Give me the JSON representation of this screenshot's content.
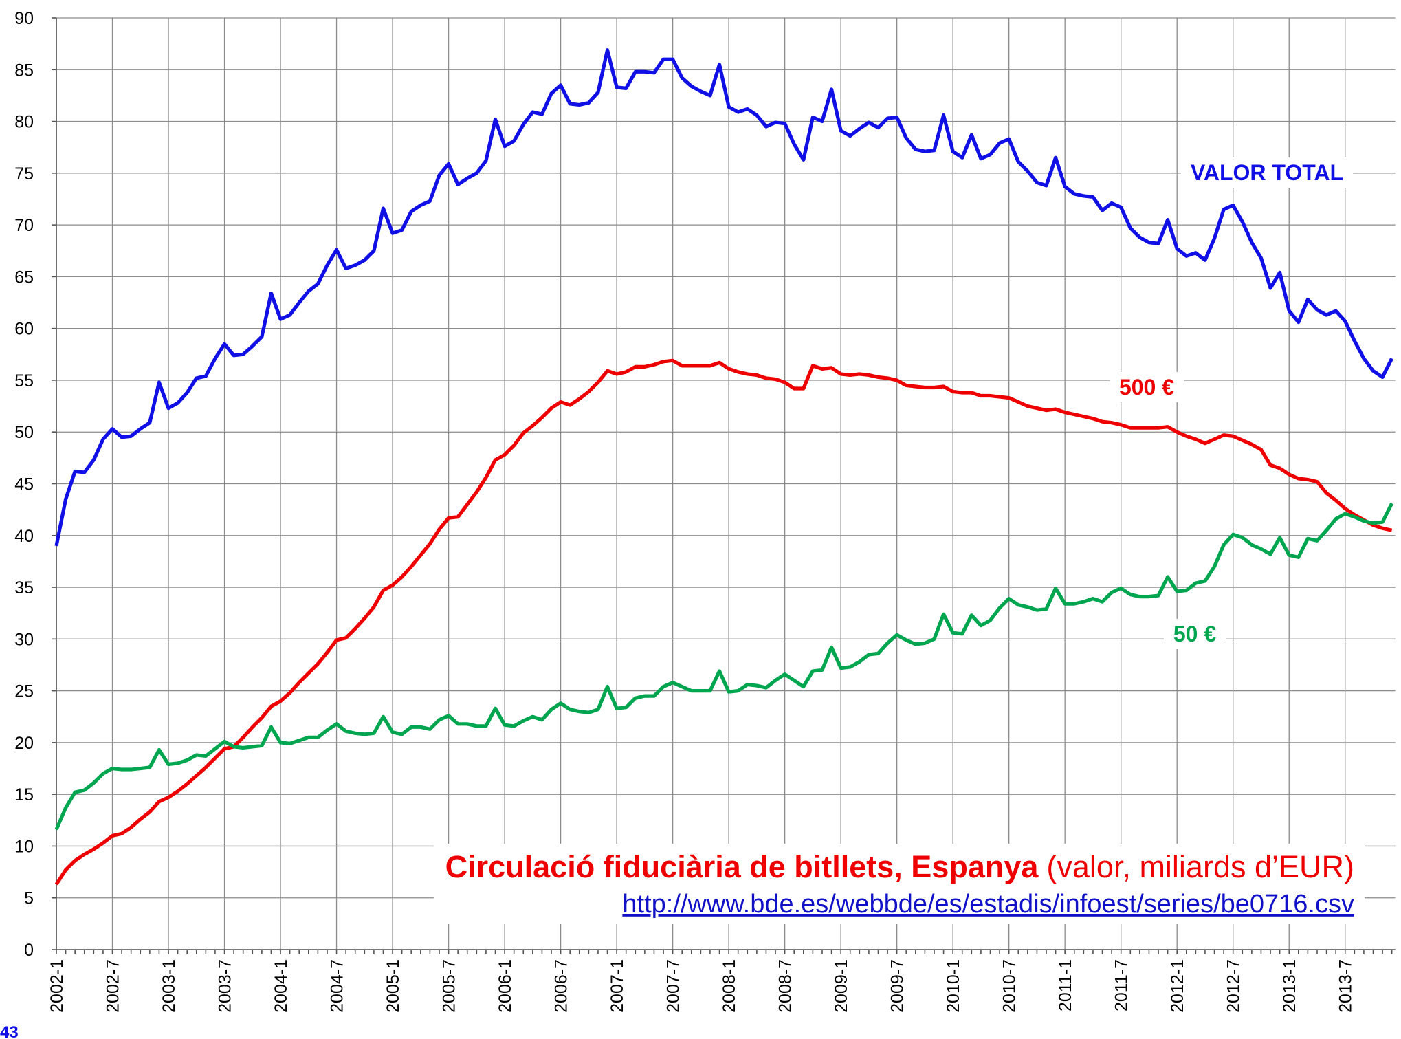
{
  "chart_data": {
    "type": "line",
    "title": "Circulació fiduciària de bitllets, Espanya",
    "subtitle": "(valor, miliards d’EUR)",
    "source": "http://www.bde.es/webbde/es/estadis/infoest/series/be0716.csv",
    "page_number": "43",
    "categories": [
      "2002-1",
      null,
      null,
      null,
      null,
      null,
      "2002-7",
      null,
      null,
      null,
      null,
      null,
      "2003-1",
      null,
      null,
      null,
      null,
      null,
      "2003-7",
      null,
      null,
      null,
      null,
      null,
      "2004-1",
      null,
      null,
      null,
      null,
      null,
      "2004-7",
      null,
      null,
      null,
      null,
      null,
      "2005-1",
      null,
      null,
      null,
      null,
      null,
      "2005-7",
      null,
      null,
      null,
      null,
      null,
      "2006-1",
      null,
      null,
      null,
      null,
      null,
      "2006-7",
      null,
      null,
      null,
      null,
      null,
      "2007-1",
      null,
      null,
      null,
      null,
      null,
      "2007-7",
      null,
      null,
      null,
      null,
      null,
      "2008-1",
      null,
      null,
      null,
      null,
      null,
      "2008-7",
      null,
      null,
      null,
      null,
      null,
      "2009-1",
      null,
      null,
      null,
      null,
      null,
      "2009-7",
      null,
      null,
      null,
      null,
      null,
      "2010-1",
      null,
      null,
      null,
      null,
      null,
      "2010-7",
      null,
      null,
      null,
      null,
      null,
      "2011-1",
      null,
      null,
      null,
      null,
      null,
      "2011-7",
      null,
      null,
      null,
      null,
      null,
      "2012-1",
      null,
      null,
      null,
      null,
      null,
      "2012-7",
      null,
      null,
      null,
      null,
      null,
      "2013-1",
      null,
      null,
      null,
      null,
      null,
      "2013-7",
      null,
      null,
      null,
      null,
      null
    ],
    "series": [
      {
        "name": "VALOR TOTAL",
        "color": "#1010e6",
        "values": [
          39.0,
          43.5,
          46.2,
          46.1,
          47.3,
          49.3,
          50.3,
          49.5,
          49.6,
          50.3,
          50.9,
          54.8,
          52.3,
          52.8,
          53.8,
          55.2,
          55.4,
          57.1,
          58.5,
          57.4,
          57.5,
          58.3,
          59.2,
          63.4,
          60.9,
          61.3,
          62.5,
          63.6,
          64.3,
          66.1,
          67.6,
          65.8,
          66.1,
          66.6,
          67.5,
          71.6,
          69.2,
          69.5,
          71.3,
          71.9,
          72.3,
          74.8,
          75.9,
          73.9,
          74.5,
          75.0,
          76.2,
          80.2,
          77.6,
          78.1,
          79.7,
          80.9,
          80.7,
          82.7,
          83.5,
          81.7,
          81.6,
          81.8,
          82.8,
          86.9,
          83.3,
          83.2,
          84.8,
          84.8,
          84.7,
          86.0,
          86.0,
          84.2,
          83.4,
          82.9,
          82.5,
          85.5,
          81.4,
          80.9,
          81.2,
          80.6,
          79.5,
          79.9,
          79.8,
          77.8,
          76.3,
          80.4,
          80.0,
          83.1,
          79.1,
          78.6,
          79.3,
          79.9,
          79.4,
          80.3,
          80.4,
          78.4,
          77.3,
          77.1,
          77.2,
          80.6,
          77.1,
          76.5,
          78.7,
          76.4,
          76.8,
          77.9,
          78.3,
          76.1,
          75.2,
          74.1,
          73.8,
          76.5,
          73.7,
          73.0,
          72.8,
          72.7,
          71.4,
          72.1,
          71.7,
          69.7,
          68.8,
          68.3,
          68.2,
          70.5,
          67.7,
          67.0,
          67.3,
          66.6,
          68.7,
          71.5,
          71.9,
          70.3,
          68.3,
          66.8,
          63.9,
          65.4,
          61.7,
          60.6,
          62.8,
          61.8,
          61.3,
          61.7,
          60.7,
          58.8,
          57.1,
          55.9,
          55.3,
          57.1
        ]
      },
      {
        "name": "500 €",
        "color": "#ee0000",
        "values": [
          6.3,
          7.7,
          8.6,
          9.2,
          9.7,
          10.3,
          11.0,
          11.2,
          11.8,
          12.6,
          13.3,
          14.3,
          14.7,
          15.3,
          16.0,
          16.8,
          17.6,
          18.5,
          19.4,
          19.6,
          20.5,
          21.5,
          22.4,
          23.5,
          24.0,
          24.8,
          25.8,
          26.7,
          27.6,
          28.7,
          29.9,
          30.1,
          31.0,
          32.0,
          33.1,
          34.7,
          35.2,
          36.0,
          37.0,
          38.1,
          39.2,
          40.6,
          41.7,
          41.8,
          43.0,
          44.2,
          45.6,
          47.3,
          47.8,
          48.7,
          49.9,
          50.6,
          51.4,
          52.3,
          52.9,
          52.6,
          53.2,
          53.9,
          54.8,
          55.9,
          55.6,
          55.8,
          56.3,
          56.3,
          56.5,
          56.8,
          56.9,
          56.4,
          56.4,
          56.4,
          56.4,
          56.7,
          56.1,
          55.8,
          55.6,
          55.5,
          55.2,
          55.1,
          54.8,
          54.2,
          54.2,
          56.4,
          56.1,
          56.2,
          55.6,
          55.5,
          55.6,
          55.5,
          55.3,
          55.2,
          55.0,
          54.5,
          54.4,
          54.3,
          54.3,
          54.4,
          53.9,
          53.8,
          53.8,
          53.5,
          53.5,
          53.4,
          53.3,
          52.9,
          52.5,
          52.3,
          52.1,
          52.2,
          51.9,
          51.7,
          51.5,
          51.3,
          51.0,
          50.9,
          50.7,
          50.4,
          50.4,
          50.4,
          50.4,
          50.5,
          50.0,
          49.6,
          49.3,
          48.9,
          49.3,
          49.7,
          49.6,
          49.2,
          48.8,
          48.3,
          46.8,
          46.5,
          45.9,
          45.5,
          45.4,
          45.2,
          44.1,
          43.4,
          42.6,
          42.0,
          41.5,
          41.0,
          40.7,
          40.5
        ]
      },
      {
        "name": "50 €",
        "color": "#00a550",
        "values": [
          11.6,
          13.7,
          15.2,
          15.4,
          16.1,
          17.0,
          17.5,
          17.4,
          17.4,
          17.5,
          17.6,
          19.3,
          17.9,
          18.0,
          18.3,
          18.8,
          18.7,
          19.4,
          20.1,
          19.6,
          19.5,
          19.6,
          19.7,
          21.5,
          20.0,
          19.9,
          20.2,
          20.5,
          20.5,
          21.2,
          21.8,
          21.1,
          20.9,
          20.8,
          20.9,
          22.5,
          21.0,
          20.8,
          21.5,
          21.5,
          21.3,
          22.2,
          22.6,
          21.8,
          21.8,
          21.6,
          21.6,
          23.3,
          21.7,
          21.6,
          22.1,
          22.5,
          22.2,
          23.2,
          23.8,
          23.2,
          23.0,
          22.9,
          23.2,
          25.4,
          23.3,
          23.4,
          24.3,
          24.5,
          24.5,
          25.4,
          25.8,
          25.4,
          25.0,
          25.0,
          25.0,
          26.9,
          24.9,
          25.0,
          25.6,
          25.5,
          25.3,
          26.0,
          26.6,
          26.0,
          25.4,
          26.9,
          27.0,
          29.2,
          27.2,
          27.3,
          27.8,
          28.5,
          28.6,
          29.6,
          30.4,
          29.9,
          29.5,
          29.6,
          30.0,
          32.4,
          30.6,
          30.5,
          32.3,
          31.3,
          31.8,
          33.0,
          33.9,
          33.3,
          33.1,
          32.8,
          32.9,
          34.9,
          33.4,
          33.4,
          33.6,
          33.9,
          33.6,
          34.5,
          34.9,
          34.3,
          34.1,
          34.1,
          34.2,
          36.0,
          34.6,
          34.7,
          35.4,
          35.6,
          37.0,
          39.1,
          40.1,
          39.8,
          39.1,
          38.7,
          38.2,
          39.8,
          38.1,
          37.9,
          39.7,
          39.5,
          40.5,
          41.6,
          42.1,
          41.8,
          41.4,
          41.2,
          41.3,
          43.1
        ]
      }
    ],
    "ylim": [
      0,
      90
    ],
    "yticks": [
      0,
      5,
      10,
      15,
      20,
      25,
      30,
      35,
      40,
      45,
      50,
      55,
      60,
      65,
      70,
      75,
      80,
      85,
      90
    ],
    "grid": true
  }
}
